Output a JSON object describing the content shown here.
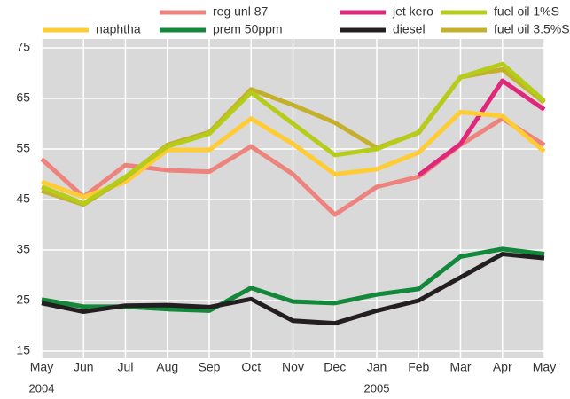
{
  "chart_data": {
    "type": "line",
    "categories": [
      "May",
      "Jun",
      "Jul",
      "Aug",
      "Sep",
      "Oct",
      "Nov",
      "Dec",
      "Jan",
      "Feb",
      "Mar",
      "Apr",
      "May"
    ],
    "x_group_labels": [
      "2004",
      null,
      null,
      null,
      null,
      null,
      null,
      null,
      "2005",
      null,
      null,
      null,
      null
    ],
    "ylim": [
      15,
      75
    ],
    "yticks": [
      15,
      25,
      35,
      45,
      55,
      65,
      75
    ],
    "grid": true,
    "series": [
      {
        "name": "naphtha",
        "color": "#ffcc33",
        "values": [
          48.5,
          45.5,
          48.5,
          54.8,
          54.8,
          61,
          56,
          50,
          51,
          54.3,
          62.3,
          61.5,
          54.5
        ]
      },
      {
        "name": "reg unl 87",
        "color": "#ee827c",
        "values": [
          53,
          45.5,
          51.8,
          50.8,
          50.5,
          55.5,
          50,
          42,
          47.5,
          49.5,
          55.8,
          61,
          55.8
        ]
      },
      {
        "name": "prem 50ppm",
        "color": "#13873a",
        "values": [
          25.2,
          23.8,
          23.8,
          23.3,
          23,
          27.5,
          24.8,
          24.5,
          26.2,
          27.3,
          33.7,
          35.2,
          34.2
        ]
      },
      {
        "name": "jet kero",
        "color": "#e0287a",
        "values": [
          null,
          null,
          null,
          null,
          null,
          null,
          null,
          null,
          null,
          49.8,
          56,
          68.5,
          62.8
        ]
      },
      {
        "name": "diesel",
        "color": "#231f20",
        "values": [
          24.5,
          22.8,
          24,
          24.1,
          23.7,
          25.3,
          21,
          20.5,
          23,
          25,
          29.6,
          34.2,
          33.4
        ]
      },
      {
        "name": "fuel oil 1%S",
        "color": "#b5cc18",
        "values": [
          47.5,
          44.2,
          49.5,
          55.5,
          58,
          66.2,
          60,
          53.8,
          55,
          58.3,
          69.2,
          71.8,
          64.5
        ]
      },
      {
        "name": "fuel oil 3.5%S",
        "color": "#c4b02c",
        "values": [
          46.7,
          44,
          49.3,
          55.8,
          58.3,
          66.8,
          63.7,
          60.2,
          55.2,
          58.2,
          69.2,
          70.7,
          64.2
        ]
      }
    ]
  }
}
